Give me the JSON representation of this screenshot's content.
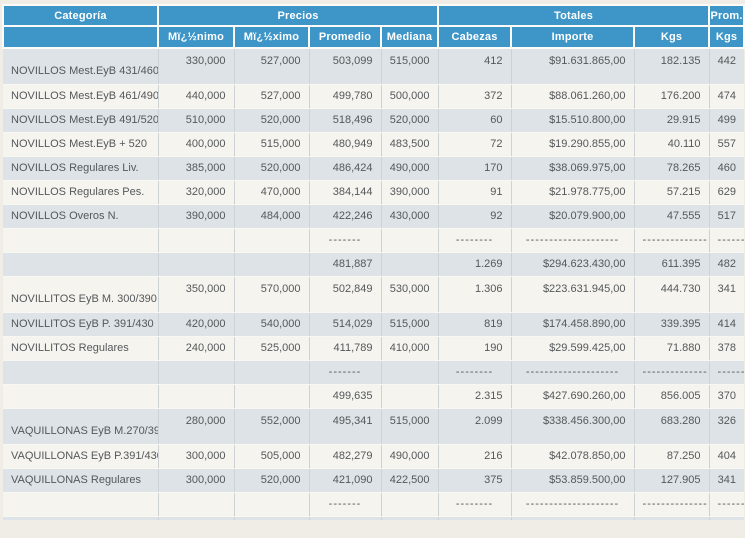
{
  "colors": {
    "header_bg": "#3e95c7",
    "header_text": "#ffffff",
    "row_gray": "#dde3e6",
    "row_cream": "#f6f4ee",
    "page_bg": "#efede6",
    "body_text": "#54585b"
  },
  "header": {
    "category": "Categoría",
    "precios_group": "Precios",
    "totales_group": "Totales",
    "prom_group": "Prom.",
    "min": "Mï¿½nimo",
    "max": "Mï¿½ximo",
    "avg": "Promedio",
    "median": "Mediana",
    "heads": "Cabezas",
    "amount": "Importe",
    "kgs": "Kgs",
    "prom_kgs": "Kgs"
  },
  "rows": [
    {
      "type": "data-tall",
      "shade": "gray",
      "category": "NOVILLOS Mest.EyB 431/460",
      "min": "330,000",
      "max": "527,000",
      "avg": "503,099",
      "median": "515,000",
      "heads": "412",
      "amount": "$91.631.865,00",
      "kgs": "182.135",
      "avg_kgs": "442"
    },
    {
      "type": "data",
      "shade": "cream",
      "category": "NOVILLOS Mest.EyB 461/490",
      "min": "440,000",
      "max": "527,000",
      "avg": "499,780",
      "median": "500,000",
      "heads": "372",
      "amount": "$88.061.260,00",
      "kgs": "176.200",
      "avg_kgs": "474"
    },
    {
      "type": "data",
      "shade": "gray",
      "category": "NOVILLOS Mest.EyB 491/520",
      "min": "510,000",
      "max": "520,000",
      "avg": "518,496",
      "median": "520,000",
      "heads": "60",
      "amount": "$15.510.800,00",
      "kgs": "29.915",
      "avg_kgs": "499"
    },
    {
      "type": "data",
      "shade": "cream",
      "category": "NOVILLOS Mest.EyB + 520",
      "min": "400,000",
      "max": "515,000",
      "avg": "480,949",
      "median": "483,500",
      "heads": "72",
      "amount": "$19.290.855,00",
      "kgs": "40.110",
      "avg_kgs": "557"
    },
    {
      "type": "data",
      "shade": "gray",
      "category": "NOVILLOS Regulares Liv.",
      "min": "385,000",
      "max": "520,000",
      "avg": "486,424",
      "median": "490,000",
      "heads": "170",
      "amount": "$38.069.975,00",
      "kgs": "78.265",
      "avg_kgs": "460"
    },
    {
      "type": "data",
      "shade": "cream",
      "category": "NOVILLOS Regulares Pes.",
      "min": "320,000",
      "max": "470,000",
      "avg": "384,144",
      "median": "390,000",
      "heads": "91",
      "amount": "$21.978.775,00",
      "kgs": "57.215",
      "avg_kgs": "629"
    },
    {
      "type": "data",
      "shade": "gray",
      "category": "NOVILLOS Overos N.",
      "min": "390,000",
      "max": "484,000",
      "avg": "422,246",
      "median": "430,000",
      "heads": "92",
      "amount": "$20.079.900,00",
      "kgs": "47.555",
      "avg_kgs": "517"
    },
    {
      "type": "dashes",
      "shade": "cream",
      "category": "",
      "min": "",
      "max": "",
      "avg": "-------",
      "median": "",
      "heads": "--------",
      "amount": "--------------------",
      "kgs": "--------------",
      "avg_kgs": "------"
    },
    {
      "type": "subtotal",
      "shade": "gray",
      "category": "",
      "min": "",
      "max": "",
      "avg": "481,887",
      "median": "",
      "heads": "1.269",
      "amount": "$294.623.430,00",
      "kgs": "611.395",
      "avg_kgs": "482"
    },
    {
      "type": "data-tall",
      "shade": "cream",
      "category": "NOVILLITOS EyB M. 300/390",
      "min": "350,000",
      "max": "570,000",
      "avg": "502,849",
      "median": "530,000",
      "heads": "1.306",
      "amount": "$223.631.945,00",
      "kgs": "444.730",
      "avg_kgs": "341"
    },
    {
      "type": "data",
      "shade": "gray",
      "category": "NOVILLITOS EyB P. 391/430",
      "min": "420,000",
      "max": "540,000",
      "avg": "514,029",
      "median": "515,000",
      "heads": "819",
      "amount": "$174.458.890,00",
      "kgs": "339.395",
      "avg_kgs": "414"
    },
    {
      "type": "data",
      "shade": "cream",
      "category": "NOVILLITOS Regulares",
      "min": "240,000",
      "max": "525,000",
      "avg": "411,789",
      "median": "410,000",
      "heads": "190",
      "amount": "$29.599.425,00",
      "kgs": "71.880",
      "avg_kgs": "378"
    },
    {
      "type": "dashes",
      "shade": "gray",
      "category": "",
      "min": "",
      "max": "",
      "avg": "-------",
      "median": "",
      "heads": "--------",
      "amount": "--------------------",
      "kgs": "--------------",
      "avg_kgs": "------"
    },
    {
      "type": "subtotal",
      "shade": "cream",
      "category": "",
      "min": "",
      "max": "",
      "avg": "499,635",
      "median": "",
      "heads": "2.315",
      "amount": "$427.690.260,00",
      "kgs": "856.005",
      "avg_kgs": "370"
    },
    {
      "type": "data-tall",
      "shade": "gray",
      "category": "VAQUILLONAS EyB M.270/390",
      "min": "280,000",
      "max": "552,000",
      "avg": "495,341",
      "median": "515,000",
      "heads": "2.099",
      "amount": "$338.456.300,00",
      "kgs": "683.280",
      "avg_kgs": "326"
    },
    {
      "type": "data",
      "shade": "cream",
      "category": "VAQUILLONAS EyB P.391/430",
      "min": "300,000",
      "max": "505,000",
      "avg": "482,279",
      "median": "490,000",
      "heads": "216",
      "amount": "$42.078.850,00",
      "kgs": "87.250",
      "avg_kgs": "404"
    },
    {
      "type": "data",
      "shade": "gray",
      "category": "VAQUILLONAS Regulares",
      "min": "300,000",
      "max": "520,000",
      "avg": "421,090",
      "median": "422,500",
      "heads": "375",
      "amount": "$53.859.500,00",
      "kgs": "127.905",
      "avg_kgs": "341"
    },
    {
      "type": "dashes",
      "shade": "cream",
      "category": "",
      "min": "",
      "max": "",
      "avg": "-------",
      "median": "",
      "heads": "--------",
      "amount": "--------------------",
      "kgs": "--------------",
      "avg_kgs": "------"
    },
    {
      "type": "stub",
      "shade": "gray",
      "category": "",
      "min": "",
      "max": "",
      "avg": "",
      "median": "",
      "heads": "",
      "amount": "",
      "kgs": "",
      "avg_kgs": ""
    }
  ]
}
